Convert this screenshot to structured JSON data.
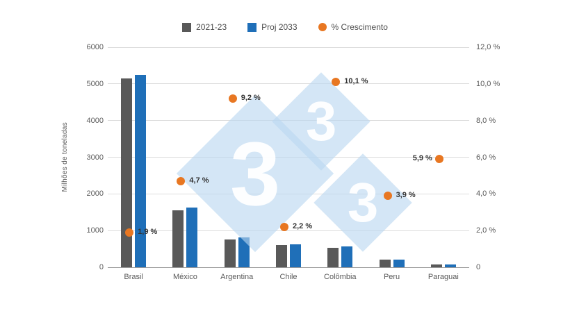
{
  "legend": {
    "items": [
      {
        "label": "2021-23",
        "color": "#595959",
        "shape": "square"
      },
      {
        "label": "Proj 2033",
        "color": "#1f6fb8",
        "shape": "square"
      },
      {
        "label": "% Crescimento",
        "color": "#e87722",
        "shape": "circle"
      }
    ]
  },
  "axis_title_left": "Milhões de toneladas",
  "watermark": {
    "text": "3",
    "color": "#b9d6f0"
  },
  "chart_data": {
    "type": "bar",
    "title": "",
    "categories": [
      "Brasil",
      "México",
      "Argentina",
      "Chile",
      "Colômbia",
      "Peru",
      "Paraguai"
    ],
    "series": [
      {
        "name": "2021-23",
        "color": "#595959",
        "values": [
          5150,
          1550,
          760,
          600,
          530,
          200,
          80
        ]
      },
      {
        "name": "Proj 2033",
        "color": "#1f6fb8",
        "values": [
          5250,
          1620,
          810,
          620,
          570,
          210,
          85
        ]
      }
    ],
    "growth_series": {
      "name": "% Crescimento",
      "color": "#e87722",
      "values": [
        1.9,
        4.7,
        9.2,
        2.2,
        10.1,
        3.9,
        5.9
      ],
      "labels": [
        "1,9 %",
        "4,7 %",
        "9,2 %",
        "2,2 %",
        "10,1 %",
        "3,9 %",
        "5,9 %"
      ],
      "label_side": [
        "right",
        "right",
        "right",
        "right",
        "right",
        "right",
        "left"
      ]
    },
    "left_axis": {
      "min": 0,
      "max": 6000,
      "ticks": [
        "0",
        "1000",
        "2000",
        "3000",
        "4000",
        "5000",
        "6000"
      ],
      "label": "Milhões de toneladas"
    },
    "right_axis": {
      "min": 0,
      "max": 12,
      "ticks": [
        "0",
        "2,0 %",
        "4,0 %",
        "6,0 %",
        "8,0 %",
        "10,0 %",
        "12,0 %"
      ]
    },
    "grid": true,
    "legend_position": "top"
  }
}
